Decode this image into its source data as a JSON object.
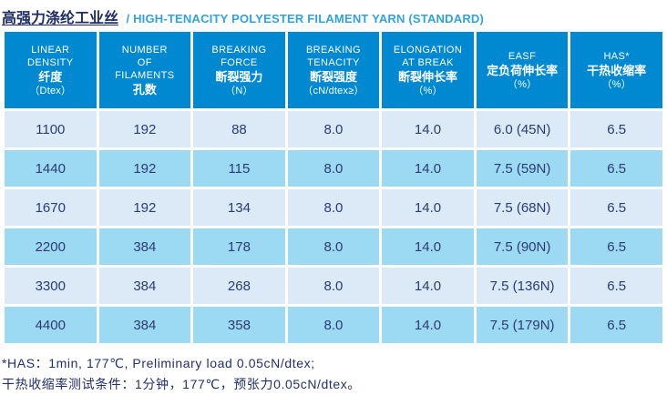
{
  "title": {
    "zh": "高强力涤纶工业丝",
    "en": "/ HIGH-TENACITY POLYESTER FILAMENT YARN (STANDARD)"
  },
  "table": {
    "columns": [
      {
        "key": "linear-density",
        "en": "LINEAR\nDENSITY",
        "zh": "纤度",
        "unit": "（Dtex）"
      },
      {
        "key": "filaments",
        "en": "NUMBER\nOF\nFILAMENTS",
        "zh": "孔数",
        "unit": ""
      },
      {
        "key": "breaking-force",
        "en": "BREAKING\nFORCE",
        "zh": "断裂强力",
        "unit": "（N）"
      },
      {
        "key": "breaking-tenacity",
        "en": "BREAKING\nTENACITY",
        "zh": "断裂强度",
        "unit": "（cN/dtex≥）"
      },
      {
        "key": "elongation",
        "en": "ELONGATION\nAT BREAK",
        "zh": "断裂伸长率",
        "unit": "（%）"
      },
      {
        "key": "easf",
        "en": "EASF",
        "zh": "定负荷伸长率",
        "unit": "（%）"
      },
      {
        "key": "has",
        "en": "HAS*",
        "zh": "干热收缩率",
        "unit": "（%）"
      }
    ],
    "rows": [
      [
        "1100",
        "192",
        "88",
        "8.0",
        "14.0",
        "6.0 (45N)",
        "6.5"
      ],
      [
        "1440",
        "192",
        "115",
        "8.0",
        "14.0",
        "7.5 (59N)",
        "6.5"
      ],
      [
        "1670",
        "192",
        "134",
        "8.0",
        "14.0",
        "7.5 (68N)",
        "6.5"
      ],
      [
        "2200",
        "384",
        "178",
        "8.0",
        "14.0",
        "7.5 (90N)",
        "6.5"
      ],
      [
        "3300",
        "384",
        "268",
        "8.0",
        "14.0",
        "7.5 (136N)",
        "6.5"
      ],
      [
        "4400",
        "384",
        "358",
        "8.0",
        "14.0",
        "7.5 (179N)",
        "6.5"
      ]
    ]
  },
  "notes": [
    "*HAS：1min, 177℃, Preliminary load 0.05cN/dtex;",
    "干热收缩率测试条件：1分钟，177℃，预张力0.05cN/dtex。"
  ],
  "colors": {
    "header_blue": "#0089d1",
    "row_light": "#dce9f7",
    "row_medium": "#9cd9f2",
    "title_navy": "#1e2d63",
    "title_blue": "#31a3dc",
    "data_navy": "#2c3c72",
    "note_navy": "#22306a"
  }
}
